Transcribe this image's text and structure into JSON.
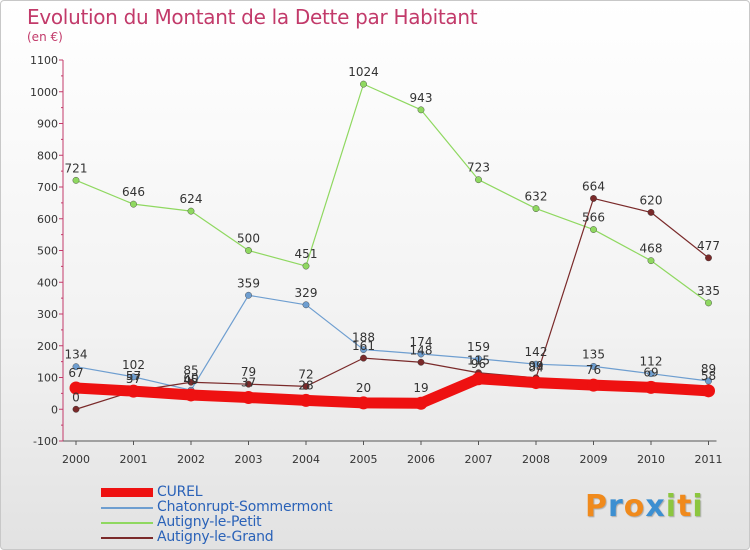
{
  "header": {
    "title": "Evolution du Montant de la Dette par Habitant",
    "subtitle": "(en €)"
  },
  "logo": {
    "letters": [
      "P",
      "r",
      "o",
      "x",
      "i",
      "t",
      "i"
    ],
    "colors": [
      "#f08a1c",
      "#3c8fd1",
      "#f08a1c",
      "#3c8fd1",
      "#8cc63f",
      "#f08a1c",
      "#8cc63f"
    ]
  },
  "chart_data": {
    "type": "line",
    "title": "Evolution du Montant de la Dette par Habitant",
    "ylabel": "(en €)",
    "xlabel": "",
    "ylim": [
      -100,
      1100
    ],
    "ytick_step": 100,
    "grid": false,
    "legend_position": "bottom-left",
    "x": [
      "2000",
      "2001",
      "2002",
      "2003",
      "2004",
      "2005",
      "2006",
      "2007",
      "2008",
      "2009",
      "2010",
      "2011"
    ],
    "series": [
      {
        "name": "CUREL",
        "color": "#ee1111",
        "width": 11,
        "values": [
          67,
          57,
          45,
          37,
          28,
          20,
          19,
          96,
          84,
          76,
          69,
          58
        ],
        "labels": [
          "67",
          "57",
          "45",
          "37",
          "28",
          "20",
          "19",
          "96",
          "84",
          "76",
          "69",
          "58"
        ]
      },
      {
        "name": "Chatonrupt-Sommermont",
        "color": "#6e9ed0",
        "width": 1.2,
        "values": [
          134,
          102,
          60,
          359,
          329,
          188,
          174,
          159,
          142,
          135,
          112,
          89
        ],
        "labels": [
          "134",
          "102",
          "60",
          "359",
          "329",
          "188",
          "174",
          "159",
          "142",
          "135",
          "112",
          "89"
        ]
      },
      {
        "name": "Autigny-le-Petit",
        "color": "#8fd860",
        "width": 1.2,
        "values": [
          721,
          646,
          624,
          500,
          451,
          1024,
          943,
          723,
          632,
          566,
          468,
          335
        ],
        "labels": [
          "721",
          "646",
          "624",
          "500",
          "451",
          "1024",
          "943",
          "723",
          "632",
          "566",
          "468",
          "335"
        ]
      },
      {
        "name": "Autigny-le-Grand",
        "color": "#7a2a2a",
        "width": 1.2,
        "values": [
          0,
          57,
          85,
          79,
          72,
          161,
          148,
          115,
          99,
          664,
          620,
          477
        ],
        "labels": [
          "0",
          "57",
          "85",
          "79",
          "72",
          "161",
          "148",
          "115",
          "99",
          "664",
          "620",
          "477"
        ]
      }
    ]
  }
}
